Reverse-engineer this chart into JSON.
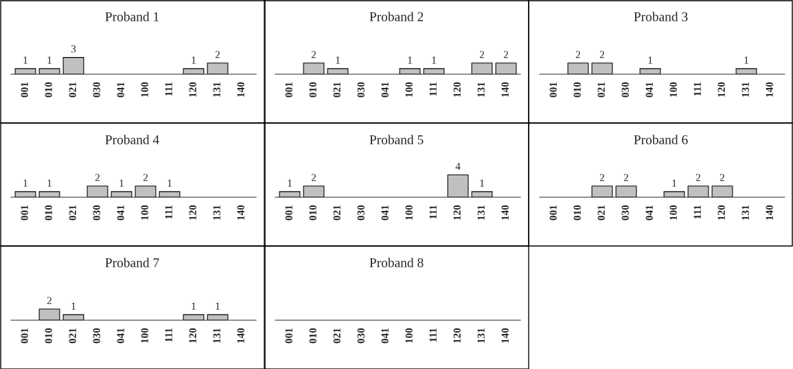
{
  "chart_data": [
    {
      "type": "bar",
      "title": "Proband 1",
      "categories": [
        "001",
        "010",
        "021",
        "030",
        "041",
        "100",
        "111",
        "120",
        "131",
        "140"
      ],
      "values": [
        1,
        1,
        3,
        null,
        null,
        null,
        null,
        1,
        2,
        null
      ],
      "color": "#c0c0c0",
      "data_labels": true
    },
    {
      "type": "bar",
      "title": "Proband 2",
      "categories": [
        "001",
        "010",
        "021",
        "030",
        "041",
        "100",
        "111",
        "120",
        "131",
        "140"
      ],
      "values": [
        null,
        2,
        1,
        null,
        null,
        1,
        1,
        null,
        2,
        2
      ],
      "color": "#c0c0c0",
      "data_labels": true
    },
    {
      "type": "bar",
      "title": "Proband 3",
      "categories": [
        "001",
        "010",
        "021",
        "030",
        "041",
        "100",
        "111",
        "120",
        "131",
        "140"
      ],
      "values": [
        null,
        2,
        2,
        null,
        1,
        null,
        null,
        null,
        1,
        null
      ],
      "color": "#c0c0c0",
      "data_labels": true
    },
    {
      "type": "bar",
      "title": "Proband 4",
      "categories": [
        "001",
        "010",
        "021",
        "030",
        "041",
        "100",
        "111",
        "120",
        "131",
        "140"
      ],
      "values": [
        1,
        1,
        null,
        2,
        1,
        2,
        1,
        null,
        null,
        null
      ],
      "color": "#c0c0c0",
      "data_labels": true
    },
    {
      "type": "bar",
      "title": "Proband 5",
      "categories": [
        "001",
        "010",
        "021",
        "030",
        "041",
        "100",
        "111",
        "120",
        "131",
        "140"
      ],
      "values": [
        1,
        2,
        null,
        null,
        null,
        null,
        null,
        4,
        1,
        null
      ],
      "color": "#c0c0c0",
      "data_labels": true
    },
    {
      "type": "bar",
      "title": "Proband 6",
      "categories": [
        "001",
        "010",
        "021",
        "030",
        "041",
        "100",
        "111",
        "120",
        "131",
        "140"
      ],
      "values": [
        null,
        null,
        2,
        2,
        null,
        1,
        2,
        2,
        null,
        null
      ],
      "color": "#c0c0c0",
      "data_labels": true
    },
    {
      "type": "bar",
      "title": "Proband 7",
      "categories": [
        "001",
        "010",
        "021",
        "030",
        "041",
        "100",
        "111",
        "120",
        "131",
        "140"
      ],
      "values": [
        null,
        2,
        1,
        null,
        null,
        null,
        null,
        1,
        1,
        null
      ],
      "color": "#c0c0c0",
      "data_labels": true
    },
    {
      "type": "other",
      "title": "Proband 8",
      "categories": [
        "001",
        "010",
        "021",
        "030",
        "041",
        "100",
        "111",
        "120",
        "131",
        "140"
      ]
    }
  ]
}
